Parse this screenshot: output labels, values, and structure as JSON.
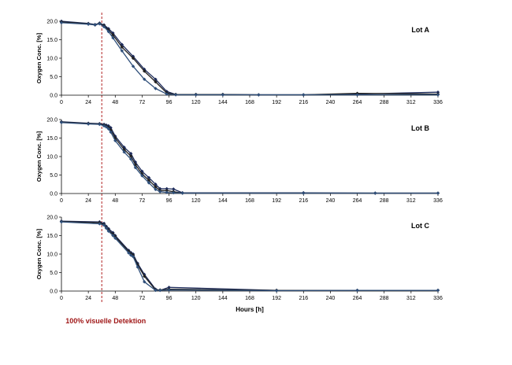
{
  "chart_data": {
    "type": "line",
    "xlabel": "Hours [h]",
    "ylabel": "Oxygen Conc. [%]",
    "x_ticks": [
      0,
      24,
      48,
      72,
      96,
      120,
      144,
      168,
      192,
      216,
      240,
      264,
      288,
      312,
      336
    ],
    "y_ticks": [
      0.0,
      5.0,
      10.0,
      15.0,
      20.0
    ],
    "xlim": [
      0,
      336
    ],
    "ylim": [
      0,
      20
    ],
    "grid": false,
    "reference_line": {
      "x": 36,
      "label": "100% visuelle Detektion",
      "color": "#b22222",
      "style": "dashed"
    },
    "panels": [
      {
        "label": "Lot A",
        "series": [
          {
            "x": [
              0,
              24,
              30,
              34,
              38,
              42,
              46,
              54,
              64,
              74,
              84,
              94,
              102,
              120,
              144,
              176,
              216,
              264,
              336
            ],
            "y": [
              20.0,
              19.4,
              19.1,
              19.5,
              19.0,
              18.0,
              16.8,
              13.7,
              10.5,
              7.0,
              4.3,
              1.0,
              0.2,
              0.2,
              0.2,
              0.1,
              0.1,
              0.3,
              0.8
            ]
          },
          {
            "x": [
              0,
              24,
              30,
              34,
              38,
              42,
              46,
              54,
              64,
              74,
              84,
              94,
              102,
              120,
              144,
              176,
              216,
              264,
              336
            ],
            "y": [
              19.8,
              19.3,
              19.0,
              19.4,
              18.8,
              17.6,
              16.3,
              13.0,
              10.0,
              6.5,
              3.6,
              0.6,
              0.2,
              0.2,
              0.2,
              0.1,
              0.1,
              0.5,
              0.3
            ]
          },
          {
            "x": [
              0,
              24,
              30,
              34,
              38,
              42,
              46,
              54,
              64,
              74,
              84,
              94,
              102,
              120,
              144,
              176,
              216,
              264,
              336
            ],
            "y": [
              19.6,
              19.2,
              19.0,
              19.3,
              18.5,
              17.2,
              15.5,
              12.0,
              7.8,
              4.3,
              1.8,
              0.3,
              0.1,
              0.1,
              0.1,
              0.1,
              0.1,
              0.1,
              0.1
            ]
          }
        ]
      },
      {
        "label": "Lot B",
        "series": [
          {
            "x": [
              0,
              24,
              34,
              38,
              40,
              42,
              44,
              48,
              56,
              62,
              66,
              72,
              78,
              84,
              88,
              94,
              100,
              108,
              216,
              280,
              336
            ],
            "y": [
              19.4,
              19.0,
              18.9,
              18.7,
              18.5,
              18.3,
              17.8,
              15.5,
              12.5,
              10.8,
              8.5,
              6.0,
              4.3,
              2.5,
              1.3,
              1.3,
              1.2,
              0.2,
              0.2,
              0.1,
              0.1
            ]
          },
          {
            "x": [
              0,
              24,
              34,
              38,
              40,
              42,
              44,
              48,
              56,
              62,
              66,
              72,
              78,
              84,
              88,
              94,
              100,
              108,
              216,
              280,
              336
            ],
            "y": [
              19.3,
              18.9,
              18.8,
              18.5,
              18.2,
              17.9,
              17.2,
              15.0,
              11.9,
              10.1,
              7.8,
              5.3,
              3.6,
              1.8,
              0.8,
              0.8,
              0.5,
              0.1,
              0.1,
              0.1,
              0.1
            ]
          },
          {
            "x": [
              0,
              24,
              34,
              38,
              40,
              42,
              44,
              48,
              56,
              62,
              66,
              72,
              78,
              84,
              88,
              94,
              100,
              108,
              216,
              280,
              336
            ],
            "y": [
              19.2,
              18.8,
              18.7,
              18.3,
              18.0,
              17.5,
              16.6,
              14.3,
              11.2,
              9.3,
              7.0,
              4.8,
              2.9,
              1.1,
              0.5,
              0.3,
              0.2,
              0.1,
              0.1,
              0.1,
              0.1
            ]
          }
        ]
      },
      {
        "label": "Lot C",
        "series": [
          {
            "x": [
              0,
              34,
              38,
              40,
              42,
              46,
              48,
              60,
              62,
              64,
              68,
              74,
              84,
              88,
              96,
              192,
              264,
              336
            ],
            "y": [
              18.9,
              18.7,
              18.3,
              17.5,
              16.9,
              15.8,
              15.0,
              11.0,
              10.4,
              10.0,
              7.5,
              4.5,
              0.5,
              0.2,
              1.0,
              0.2,
              0.2,
              0.2
            ]
          },
          {
            "x": [
              0,
              34,
              38,
              40,
              42,
              46,
              48,
              60,
              62,
              64,
              68,
              74,
              84,
              88,
              96,
              192,
              264,
              336
            ],
            "y": [
              18.8,
              18.5,
              18.0,
              17.2,
              16.5,
              15.4,
              14.7,
              10.7,
              10.1,
              9.7,
              7.1,
              4.0,
              0.3,
              0.3,
              0.5,
              0.2,
              0.2,
              0.2
            ]
          },
          {
            "x": [
              0,
              34,
              38,
              40,
              42,
              46,
              48,
              60,
              62,
              64,
              68,
              74,
              84,
              88,
              96,
              192,
              264,
              336
            ],
            "y": [
              18.7,
              18.2,
              17.8,
              17.0,
              16.2,
              15.0,
              14.3,
              10.3,
              9.7,
              9.3,
              6.5,
              2.5,
              0.2,
              0.2,
              0.3,
              0.1,
              0.2,
              0.2
            ]
          }
        ]
      }
    ]
  }
}
